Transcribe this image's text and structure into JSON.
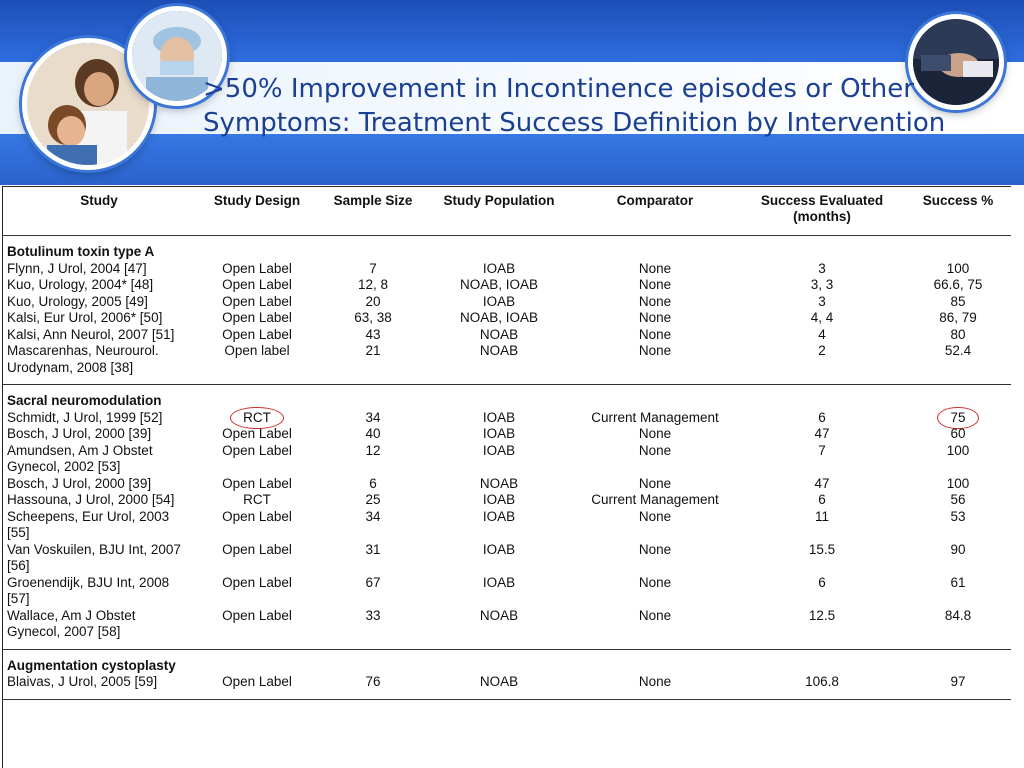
{
  "slide": {
    "title_line1": ">50% Improvement in Incontinence episodes or Other",
    "title_line2": "Symptoms: Treatment Success Definition by Intervention"
  },
  "table": {
    "headers": [
      "Study",
      "Study Design",
      "Sample Size",
      "Study Population",
      "Comparator",
      "Success Evaluated (months)",
      "Success %"
    ],
    "sections": [
      {
        "name": "Botulinum toxin type A",
        "rows": [
          [
            "Flynn, J Urol, 2004 [47]",
            "Open Label",
            "7",
            "IOAB",
            "None",
            "3",
            "100"
          ],
          [
            "Kuo, Urology, 2004* [48]",
            "Open Label",
            "12, 8",
            "NOAB, IOAB",
            "None",
            "3, 3",
            "66.6, 75"
          ],
          [
            "Kuo, Urology, 2005 [49]",
            "Open Label",
            "20",
            "IOAB",
            "None",
            "3",
            "85"
          ],
          [
            "Kalsi, Eur Urol, 2006* [50]",
            "Open Label",
            "63, 38",
            "NOAB, IOAB",
            "None",
            "4, 4",
            "86, 79"
          ],
          [
            "Kalsi, Ann Neurol, 2007 [51]",
            "Open Label",
            "43",
            "NOAB",
            "None",
            "4",
            "80"
          ],
          [
            "Mascarenhas, Neurourol. Urodynam, 2008 [38]",
            "Open label",
            "21",
            "NOAB",
            "None",
            "2",
            "52.4"
          ]
        ]
      },
      {
        "name": "Sacral neuromodulation",
        "rows": [
          [
            "Schmidt, J Urol, 1999 [52]",
            "RCT",
            "34",
            "IOAB",
            "Current Management",
            "6",
            "75"
          ],
          [
            "Bosch, J Urol, 2000 [39]",
            "Open Label",
            "40",
            "IOAB",
            "None",
            "47",
            "60"
          ],
          [
            "Amundsen, Am J Obstet Gynecol, 2002 [53]",
            "Open Label",
            "12",
            "IOAB",
            "None",
            "7",
            "100"
          ],
          [
            "Bosch, J Urol, 2000 [39]",
            "Open Label",
            "6",
            "NOAB",
            "None",
            "47",
            "100"
          ],
          [
            "Hassouna, J Urol, 2000 [54]",
            "RCT",
            "25",
            "IOAB",
            "Current Management",
            "6",
            "56"
          ],
          [
            "Scheepens, Eur Urol, 2003 [55]",
            "Open Label",
            "34",
            "IOAB",
            "None",
            "11",
            "53"
          ],
          [
            "Van Voskuilen, BJU Int, 2007 [56]",
            "Open Label",
            "31",
            "IOAB",
            "None",
            "15.5",
            "90"
          ],
          [
            "Groenendijk, BJU Int, 2008 [57]",
            "Open Label",
            "67",
            "IOAB",
            "None",
            "6",
            "61"
          ],
          [
            "Wallace, Am J Obstet Gynecol, 2007 [58]",
            "Open Label",
            "33",
            "NOAB",
            "None",
            "12.5",
            "84.8"
          ]
        ]
      },
      {
        "name": "Augmentation cystoplasty",
        "rows": [
          [
            "Blaivas, J Urol, 2005 [59]",
            "Open Label",
            "76",
            "NOAB",
            "None",
            "106.8",
            "97"
          ]
        ]
      }
    ]
  },
  "colors": {
    "banner_blue": "#2f6fe0",
    "title_text": "#1a3f93",
    "highlight_circle": "#d03030"
  },
  "icons": [
    "doctor-child-photo",
    "surgeon-photo",
    "handshake-photo"
  ]
}
